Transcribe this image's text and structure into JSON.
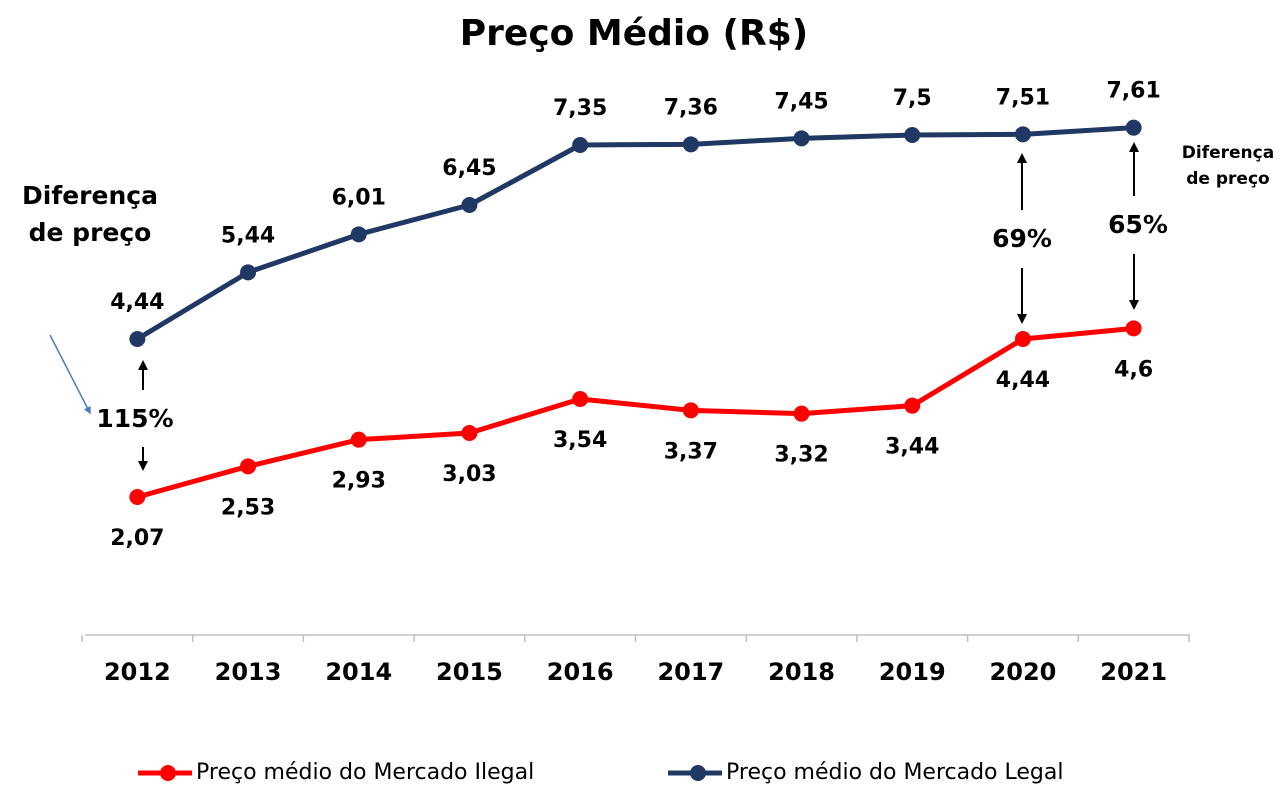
{
  "chart_data": {
    "type": "line",
    "title": "Preço Médio (R$)",
    "categories": [
      "2012",
      "2013",
      "2014",
      "2015",
      "2016",
      "2017",
      "2018",
      "2019",
      "2020",
      "2021"
    ],
    "series": [
      {
        "name": "Preço médio do Mercado Ilegal",
        "color": "#ff0000",
        "values": [
          2.07,
          2.53,
          2.93,
          3.03,
          3.54,
          3.37,
          3.32,
          3.44,
          4.44,
          4.6
        ],
        "value_labels": [
          "2,07",
          "2,53",
          "2,93",
          "3,03",
          "3,54",
          "3,37",
          "3,32",
          "3,44",
          "4,44",
          "4,6"
        ]
      },
      {
        "name": "Preço médio do Mercado Legal",
        "color": "#203864",
        "values": [
          4.44,
          5.44,
          6.01,
          6.45,
          7.35,
          7.36,
          7.45,
          7.5,
          7.51,
          7.61
        ],
        "value_labels": [
          "4,44",
          "5,44",
          "6,01",
          "6,45",
          "7,35",
          "7,36",
          "7,45",
          "7,5",
          "7,51",
          "7,61"
        ]
      }
    ],
    "ylim": [
      0,
      9
    ],
    "legend": "bottom",
    "annotations": {
      "left_note": [
        "Diferença",
        "de preço"
      ],
      "right_note": [
        "Diferença",
        "de preço"
      ],
      "diff_2012": "115%",
      "diff_2020": "69%",
      "diff_2021": "65%"
    }
  }
}
